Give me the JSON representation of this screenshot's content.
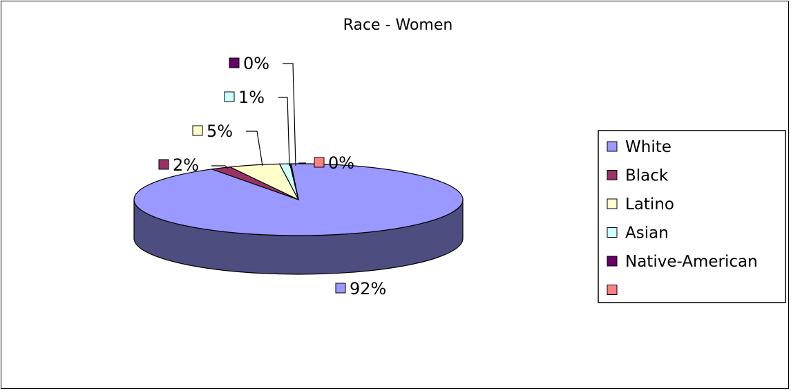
{
  "chart_data": {
    "type": "pie",
    "title": "Race - Women",
    "categories": [
      "White",
      "Black",
      "Latino",
      "Asian",
      "Native-American",
      ""
    ],
    "values": [
      92,
      2,
      5,
      1,
      0,
      0
    ],
    "data_labels": [
      "92%",
      "2%",
      "5%",
      "1%",
      "0%",
      "0%"
    ],
    "colors": [
      "#9999ff",
      "#993366",
      "#ffffcc",
      "#ccffff",
      "#660066",
      "#ff8080"
    ],
    "legend_position": "right",
    "style": "3d"
  }
}
